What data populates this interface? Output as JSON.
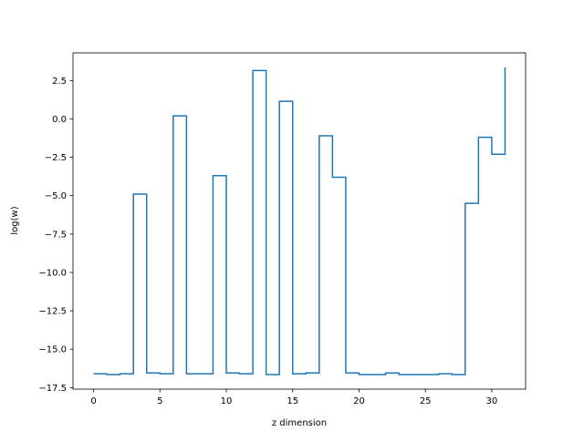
{
  "chart_data": {
    "type": "line",
    "drawstyle": "steps-post",
    "title": "",
    "xlabel": "z dimension",
    "ylabel": "log(w)",
    "xlim": [
      -1.55,
      32.55
    ],
    "ylim": [
      -17.6,
      4.3
    ],
    "xticks": [
      0,
      5,
      10,
      15,
      20,
      25,
      30
    ],
    "yticks": [
      2.5,
      0.0,
      -2.5,
      -5.0,
      -7.5,
      -10.0,
      -12.5,
      -15.0,
      -17.5
    ],
    "ytick_labels": [
      "2.5",
      "0.0",
      "−2.5",
      "−5.0",
      "−7.5",
      "−10.0",
      "−12.5",
      "−15.0",
      "−17.5"
    ],
    "grid": false,
    "series": [
      {
        "color": "#1f77b4",
        "x": [
          0,
          1,
          2,
          3,
          4,
          5,
          6,
          7,
          8,
          9,
          10,
          11,
          12,
          13,
          14,
          15,
          16,
          17,
          18,
          19,
          20,
          21,
          22,
          23,
          24,
          25,
          26,
          27,
          28,
          29,
          30,
          31
        ],
        "values": [
          -16.6,
          -16.65,
          -16.6,
          -4.9,
          -16.55,
          -16.6,
          0.2,
          -16.6,
          -16.6,
          -3.7,
          -16.55,
          -16.6,
          3.15,
          -16.65,
          1.15,
          -16.6,
          -16.55,
          -1.1,
          -3.8,
          -16.55,
          -16.65,
          -16.65,
          -16.55,
          -16.65,
          -16.65,
          -16.65,
          -16.6,
          -16.65,
          -5.5,
          -1.2,
          -2.3,
          3.35
        ]
      }
    ]
  }
}
